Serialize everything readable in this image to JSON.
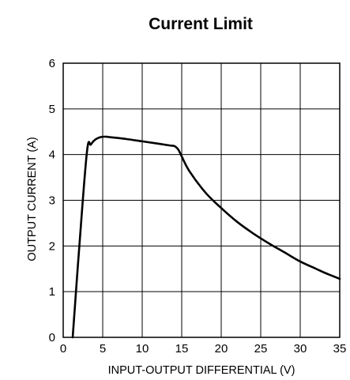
{
  "chart_data": {
    "type": "line",
    "title": "Current Limit",
    "xlabel": "INPUT-OUTPUT DIFFERENTIAL (V)",
    "ylabel": "OUTPUT CURRENT (A)",
    "xlim": [
      0,
      35
    ],
    "ylim": [
      0,
      6
    ],
    "x_ticks": [
      "0",
      "5",
      "10",
      "15",
      "20",
      "25",
      "30",
      "35"
    ],
    "y_ticks": [
      "0",
      "1",
      "2",
      "3",
      "4",
      "5",
      "6"
    ],
    "grid": true,
    "legend": "none",
    "line_color": "#000000",
    "series": [
      {
        "x": [
          1.2,
          2.0,
          3.0,
          3.5,
          4.0,
          4.5,
          5.0,
          5.5,
          6.0,
          8.0,
          10.0,
          12.0,
          13.5,
          14.0,
          14.3,
          14.6,
          15.0,
          16.0,
          18.0,
          20.0,
          22.0,
          24.0,
          26.0,
          28.0,
          30.0,
          32.0,
          33.0,
          34.0,
          35.0
        ],
        "y": [
          0.0,
          1.9,
          4.05,
          4.22,
          4.32,
          4.37,
          4.39,
          4.39,
          4.38,
          4.34,
          4.29,
          4.24,
          4.2,
          4.19,
          4.16,
          4.1,
          3.96,
          3.63,
          3.17,
          2.83,
          2.53,
          2.28,
          2.06,
          1.86,
          1.66,
          1.5,
          1.42,
          1.35,
          1.28
        ]
      }
    ]
  }
}
